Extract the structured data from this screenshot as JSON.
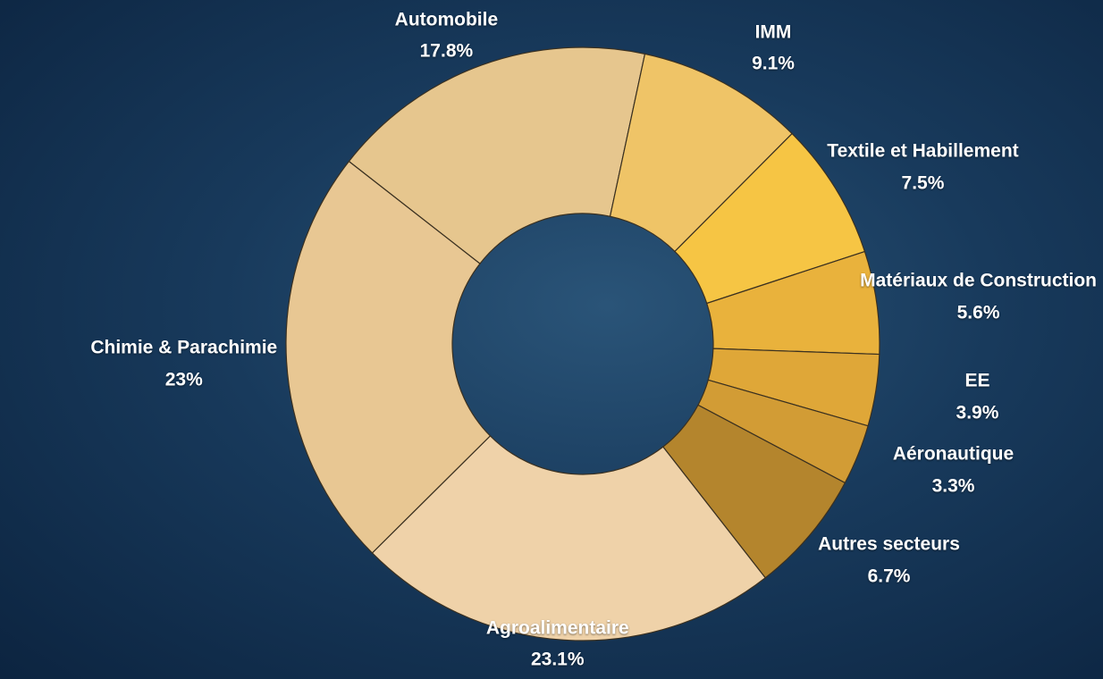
{
  "chart_data": {
    "type": "donut",
    "categories": [
      "Automobile",
      "IMM",
      "Textile et Habillement",
      "Matériaux de Construction",
      "EE",
      "Aéronautique",
      "Autres secteurs",
      "Agroalimentaire",
      "Chimie & Parachimie"
    ],
    "values": [
      17.8,
      9.1,
      7.5,
      5.6,
      3.9,
      3.3,
      6.7,
      23.1,
      23
    ],
    "value_labels": [
      "17.8%",
      "9.1%",
      "7.5%",
      "5.6%",
      "3.9%",
      "3.3%",
      "6.7%",
      "23.1%",
      "23%"
    ],
    "colors": [
      "#e6c68e",
      "#efc467",
      "#f6c544",
      "#e9b23c",
      "#dfa738",
      "#d29c35",
      "#b4852d",
      "#efd2a9",
      "#e8c793"
    ]
  }
}
